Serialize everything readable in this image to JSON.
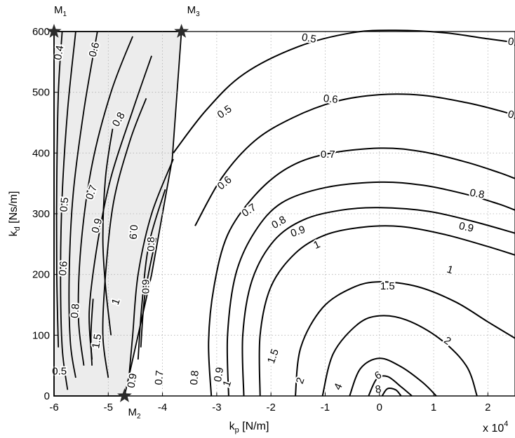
{
  "chart_data": {
    "type": "contour",
    "xlabel": "k",
    "xlabel_sub": "p",
    "xlabel_unit": " [N/m]",
    "ylabel": "k",
    "ylabel_sub": "d",
    "ylabel_unit": " [Ns/m]",
    "x_multiplier": "x 10",
    "x_multiplier_exp": "4",
    "xlim": [
      -6,
      2.5
    ],
    "ylim": [
      0,
      600
    ],
    "xticks": [
      -6,
      -5,
      -4,
      -3,
      -2,
      -1,
      0,
      1,
      2
    ],
    "yticks": [
      0,
      100,
      200,
      300,
      400,
      500,
      600
    ],
    "grid": true,
    "shaded_region": {
      "polygon": [
        [
          -6,
          0
        ],
        [
          -6,
          600
        ],
        [
          -3.65,
          600
        ],
        [
          -3.82,
          390
        ],
        [
          -4.2,
          200
        ],
        [
          -4.7,
          0
        ]
      ],
      "color": "#ececec"
    },
    "points": [
      {
        "name": "M1",
        "base": "M",
        "sub": "1",
        "x": -6.0,
        "y": 600
      },
      {
        "name": "M2",
        "base": "M",
        "sub": "2",
        "x": -4.7,
        "y": 0
      },
      {
        "name": "M3",
        "base": "M",
        "sub": "3",
        "x": -3.65,
        "y": 600
      }
    ],
    "contours_outer": [
      {
        "level": "0.5",
        "points": [
          [
            -3.8,
            400
          ],
          [
            -3.2,
            470
          ],
          [
            -2.5,
            530
          ],
          [
            -1.5,
            575
          ],
          [
            -0.5,
            598
          ],
          [
            0.3,
            602
          ],
          [
            1.2,
            598
          ],
          [
            2.0,
            588
          ],
          [
            2.5,
            582
          ]
        ]
      },
      {
        "level": "0.6",
        "points": [
          [
            -3.4,
            280
          ],
          [
            -2.9,
            360
          ],
          [
            -2.3,
            420
          ],
          [
            -1.6,
            458
          ],
          [
            -0.8,
            485
          ],
          [
            0,
            496
          ],
          [
            0.8,
            495
          ],
          [
            1.6,
            483
          ],
          [
            2.2,
            470
          ],
          [
            2.5,
            462
          ]
        ]
      },
      {
        "level": "0.7",
        "points": [
          [
            -3.1,
            0
          ],
          [
            -3.15,
            90
          ],
          [
            -3.05,
            180
          ],
          [
            -2.8,
            265
          ],
          [
            -2.3,
            330
          ],
          [
            -1.7,
            375
          ],
          [
            -1.0,
            398
          ],
          [
            0,
            408
          ],
          [
            0.8,
            402
          ],
          [
            1.6,
            385
          ],
          [
            2.2,
            368
          ],
          [
            2.5,
            358
          ]
        ]
      },
      {
        "level": "0.8",
        "points": [
          [
            -2.78,
            0
          ],
          [
            -2.8,
            100
          ],
          [
            -2.65,
            200
          ],
          [
            -2.3,
            270
          ],
          [
            -1.8,
            318
          ],
          [
            -1.0,
            343
          ],
          [
            0,
            352
          ],
          [
            0.8,
            347
          ],
          [
            1.6,
            332
          ],
          [
            2.2,
            316
          ],
          [
            2.5,
            306
          ]
        ]
      },
      {
        "level": "0.9",
        "points": [
          [
            -2.5,
            0
          ],
          [
            -2.52,
            100
          ],
          [
            -2.35,
            190
          ],
          [
            -1.95,
            255
          ],
          [
            -1.4,
            290
          ],
          [
            -0.7,
            306
          ],
          [
            0,
            310
          ],
          [
            0.9,
            304
          ],
          [
            1.7,
            288
          ],
          [
            2.5,
            268
          ]
        ]
      },
      {
        "level": "1",
        "points": [
          [
            -2.2,
            0
          ],
          [
            -2.2,
            100
          ],
          [
            -2.0,
            180
          ],
          [
            -1.55,
            235
          ],
          [
            -1.0,
            265
          ],
          [
            -0.3,
            278
          ],
          [
            0.4,
            279
          ],
          [
            1.2,
            266
          ],
          [
            2.0,
            246
          ],
          [
            2.5,
            232
          ]
        ]
      },
      {
        "level": "1.5",
        "points": [
          [
            -1.55,
            0
          ],
          [
            -1.45,
            80
          ],
          [
            -1.05,
            145
          ],
          [
            -0.5,
            178
          ],
          [
            0,
            188
          ],
          [
            0.7,
            180
          ],
          [
            1.4,
            155
          ],
          [
            2.0,
            122
          ],
          [
            2.5,
            95
          ]
        ]
      },
      {
        "level": "2",
        "points": [
          [
            -1.05,
            0
          ],
          [
            -0.85,
            70
          ],
          [
            -0.4,
            118
          ],
          [
            0,
            132
          ],
          [
            0.5,
            125
          ],
          [
            1.1,
            95
          ],
          [
            1.6,
            50
          ],
          [
            1.8,
            0
          ]
        ]
      },
      {
        "level": "4",
        "points": [
          [
            -0.55,
            0
          ],
          [
            -0.35,
            45
          ],
          [
            0,
            62
          ],
          [
            0.4,
            48
          ],
          [
            0.8,
            22
          ],
          [
            1.05,
            0
          ]
        ]
      },
      {
        "level": "6",
        "points": [
          [
            -0.2,
            0
          ],
          [
            -0.05,
            28
          ],
          [
            0.15,
            32
          ],
          [
            0.4,
            15
          ],
          [
            0.6,
            0
          ]
        ]
      },
      {
        "level": "8",
        "points": [
          [
            0.05,
            0
          ],
          [
            0.15,
            12
          ],
          [
            0.3,
            10
          ],
          [
            0.4,
            0
          ]
        ]
      }
    ],
    "contours_inner": [
      {
        "level": "0.4",
        "points": [
          [
            -5.85,
            600
          ],
          [
            -5.92,
            500
          ],
          [
            -5.95,
            350
          ],
          [
            -5.95,
            200
          ],
          [
            -5.92,
            80
          ]
        ]
      },
      {
        "level": "0.5",
        "points": [
          [
            -5.6,
            600
          ],
          [
            -5.75,
            470
          ],
          [
            -5.85,
            330
          ],
          [
            -5.88,
            200
          ],
          [
            -5.85,
            80
          ],
          [
            -5.75,
            10
          ]
        ]
      },
      {
        "level": "0.6",
        "points": [
          [
            -5.2,
            600
          ],
          [
            -5.45,
            470
          ],
          [
            -5.65,
            330
          ],
          [
            -5.72,
            200
          ],
          [
            -5.7,
            90
          ],
          [
            -5.6,
            30
          ]
        ]
      },
      {
        "level": "0.7",
        "points": [
          [
            -4.55,
            592
          ],
          [
            -4.95,
            500
          ],
          [
            -5.3,
            380
          ],
          [
            -5.5,
            250
          ],
          [
            -5.55,
            130
          ],
          [
            -5.45,
            50
          ]
        ]
      },
      {
        "level": "0.8",
        "points": [
          [
            -4.2,
            560
          ],
          [
            -4.55,
            470
          ],
          [
            -4.95,
            360
          ],
          [
            -5.2,
            250
          ],
          [
            -5.35,
            140
          ],
          [
            -5.3,
            60
          ]
        ]
      },
      {
        "level": "0.9",
        "points": [
          [
            -4.3,
            490
          ],
          [
            -4.6,
            420
          ],
          [
            -4.9,
            320
          ],
          [
            -5.05,
            200
          ],
          [
            -5.1,
            100
          ],
          [
            -5.0,
            30
          ]
        ]
      },
      {
        "level": "1",
        "points": [
          [
            -4.92,
            440
          ],
          [
            -5.05,
            360
          ],
          [
            -5.1,
            260
          ],
          [
            -5.05,
            180
          ],
          [
            -4.95,
            100
          ]
        ]
      },
      {
        "level": "1.5",
        "points": [
          [
            -5.28,
            160
          ],
          [
            -5.32,
            100
          ],
          [
            -5.3,
            50
          ]
        ]
      },
      {
        "level": "0.9",
        "points": [
          [
            -3.8,
            390
          ],
          [
            -4.2,
            300
          ],
          [
            -4.45,
            200
          ],
          [
            -4.55,
            100
          ],
          [
            -4.62,
            30
          ]
        ]
      },
      {
        "level": "0.9",
        "points": [
          [
            -3.95,
            340
          ],
          [
            -4.25,
            250
          ],
          [
            -4.38,
            150
          ],
          [
            -4.45,
            60
          ]
        ]
      },
      {
        "level": "1",
        "points": [
          [
            -4.12,
            260
          ],
          [
            -4.32,
            170
          ],
          [
            -4.4,
            80
          ]
        ]
      }
    ],
    "contour_labels": [
      {
        "text": "0.5",
        "x": -1.3,
        "y": 588,
        "rot": 10
      },
      {
        "text": "0.",
        "x": 2.45,
        "y": 582,
        "rot": 10
      },
      {
        "text": "0.5",
        "x": -2.85,
        "y": 467,
        "rot": -35
      },
      {
        "text": "0.6",
        "x": -0.9,
        "y": 488,
        "rot": 5
      },
      {
        "text": "0.",
        "x": 2.45,
        "y": 462,
        "rot": 15
      },
      {
        "text": "0.6",
        "x": -2.85,
        "y": 350,
        "rot": -40
      },
      {
        "text": "0.7",
        "x": -0.95,
        "y": 397,
        "rot": 0
      },
      {
        "text": "0.8",
        "x": 1.8,
        "y": 332,
        "rot": 10
      },
      {
        "text": "0.7",
        "x": -2.4,
        "y": 305,
        "rot": -35
      },
      {
        "text": "0.9",
        "x": 1.6,
        "y": 277,
        "rot": 12
      },
      {
        "text": "0.8",
        "x": -1.85,
        "y": 285,
        "rot": -30
      },
      {
        "text": "1",
        "x": 1.3,
        "y": 207,
        "rot": 18
      },
      {
        "text": "0.9",
        "x": -1.5,
        "y": 270,
        "rot": -20
      },
      {
        "text": "1",
        "x": -1.15,
        "y": 248,
        "rot": -25
      },
      {
        "text": "1.5",
        "x": 0.15,
        "y": 180,
        "rot": 0
      },
      {
        "text": "2",
        "x": 1.25,
        "y": 90,
        "rot": 35
      },
      {
        "text": "1.5",
        "x": -1.95,
        "y": 65,
        "rot": -70
      },
      {
        "text": "2",
        "x": -1.45,
        "y": 25,
        "rot": -70
      },
      {
        "text": "4",
        "x": -0.75,
        "y": 15,
        "rot": -65
      },
      {
        "text": "6",
        "x": -0.02,
        "y": 33,
        "rot": -30
      },
      {
        "text": "8",
        "x": -0.02,
        "y": 10,
        "rot": -10
      },
      {
        "text": "0.7",
        "x": -4.05,
        "y": 30,
        "rot": -85
      },
      {
        "text": "0.8",
        "x": -3.4,
        "y": 30,
        "rot": -85
      },
      {
        "text": "0.9",
        "x": -2.95,
        "y": 35,
        "rot": -80
      },
      {
        "text": "1",
        "x": -2.8,
        "y": 20,
        "rot": -70
      },
      {
        "text": "0.4",
        "x": -5.9,
        "y": 565,
        "rot": -80
      },
      {
        "text": "0.6",
        "x": -5.25,
        "y": 570,
        "rot": -75
      },
      {
        "text": "0.8",
        "x": -4.8,
        "y": 455,
        "rot": -60
      },
      {
        "text": "0.7",
        "x": -5.3,
        "y": 335,
        "rot": -70
      },
      {
        "text": "0.5",
        "x": -5.8,
        "y": 315,
        "rot": -85
      },
      {
        "text": "0.9",
        "x": -5.2,
        "y": 280,
        "rot": -75
      },
      {
        "text": "0.6",
        "x": -5.82,
        "y": 210,
        "rot": -85
      },
      {
        "text": "0.8",
        "x": -5.6,
        "y": 140,
        "rot": -85
      },
      {
        "text": "1.5",
        "x": -5.2,
        "y": 90,
        "rot": -80
      },
      {
        "text": "1",
        "x": -4.85,
        "y": 155,
        "rot": -70
      },
      {
        "text": "0.9",
        "x": -4.55,
        "y": 270,
        "rot": 95
      },
      {
        "text": "0.8",
        "x": -4.2,
        "y": 250,
        "rot": -90
      },
      {
        "text": "0.9",
        "x": -4.3,
        "y": 180,
        "rot": -90
      },
      {
        "text": "0.9",
        "x": -4.55,
        "y": 25,
        "rot": -80
      },
      {
        "text": "0.5",
        "x": -5.9,
        "y": 40,
        "rot": 0
      }
    ]
  }
}
